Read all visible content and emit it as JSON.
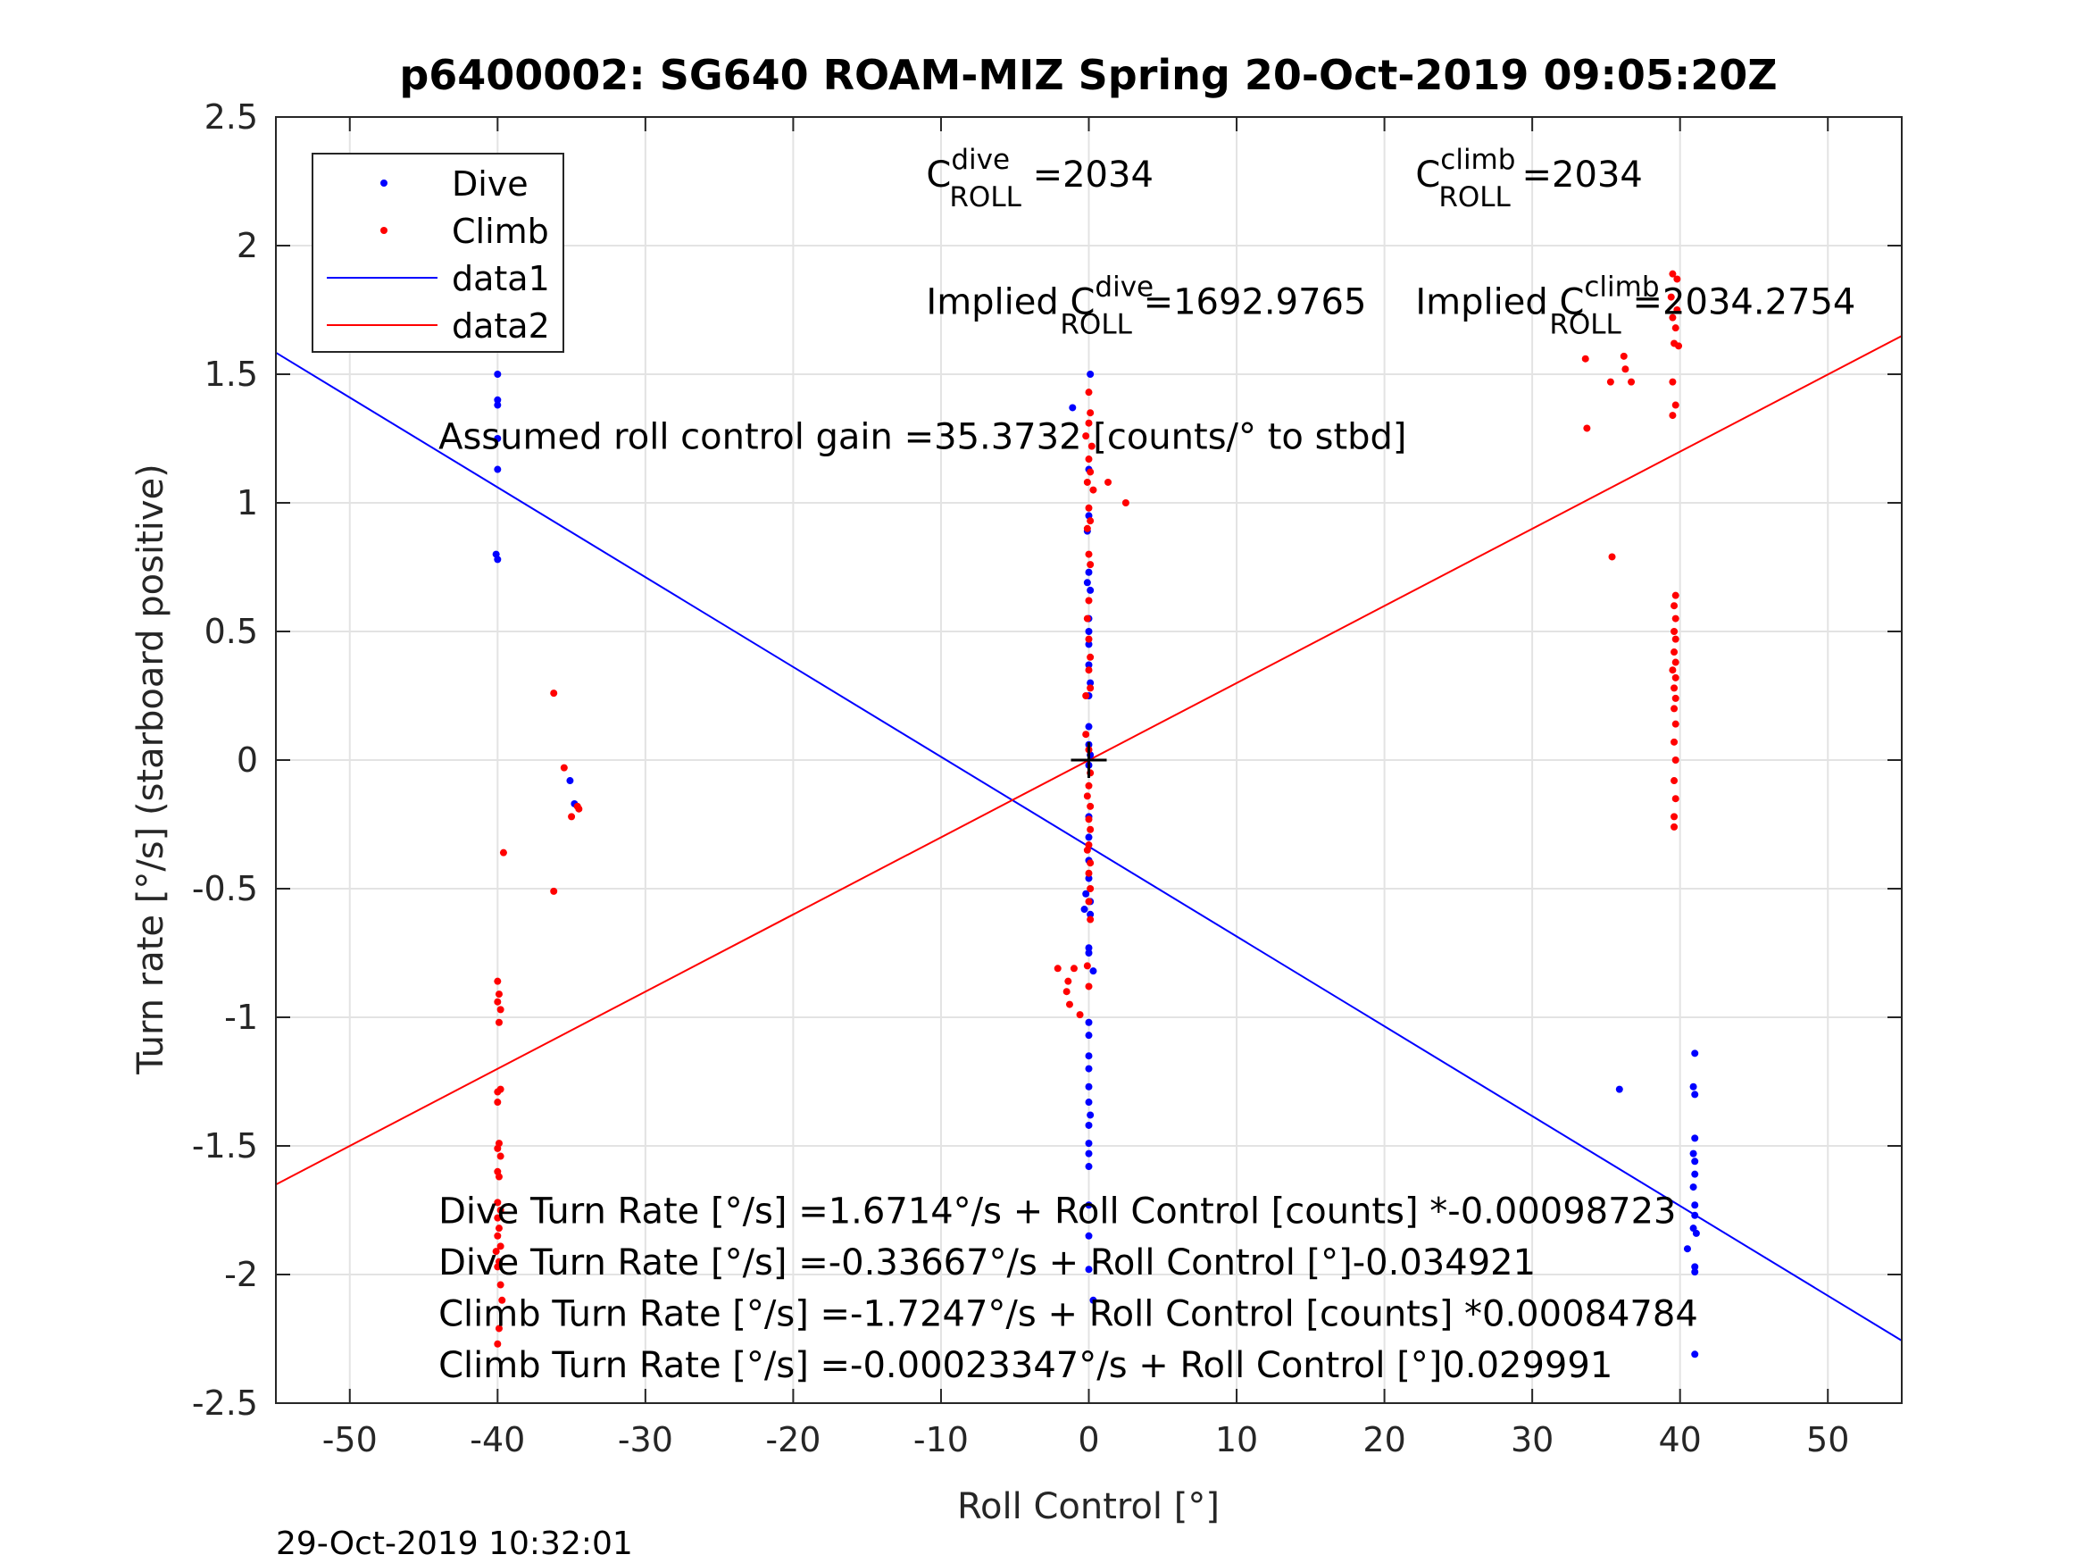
{
  "chart_data": {
    "type": "scatter",
    "title": "p6400002: SG640 ROAM-MIZ Spring 20-Oct-2019 09:05:20Z",
    "xlabel": "Roll Control [°]",
    "ylabel": "Turn rate [°/s] (starboard positive)",
    "xlim": [
      -55,
      55
    ],
    "ylim": [
      -2.5,
      2.5
    ],
    "xticks": [
      -50,
      -40,
      -30,
      -20,
      -10,
      0,
      10,
      20,
      30,
      40,
      50
    ],
    "yticks": [
      -2.5,
      -2,
      -1.5,
      -1,
      -0.5,
      0,
      0.5,
      1,
      1.5,
      2,
      2.5
    ],
    "grid": true,
    "legend_position": "top-left",
    "legend": [
      "Dive",
      "Climb",
      "data1",
      "data2"
    ],
    "colors": {
      "dive": "#0000ff",
      "climb": "#ff0000",
      "marker": "#000000"
    },
    "series": [
      {
        "name": "Dive",
        "kind": "points",
        "color": "#0000ff",
        "points": [
          [
            -40,
            1.78
          ],
          [
            -40,
            1.75
          ],
          [
            -40,
            1.5
          ],
          [
            -40,
            1.4
          ],
          [
            -40,
            1.38
          ],
          [
            -40,
            1.25
          ],
          [
            -40,
            1.13
          ],
          [
            -40.1,
            0.8
          ],
          [
            -40,
            0.78
          ],
          [
            -35.1,
            -0.08
          ],
          [
            -34.8,
            -0.17
          ],
          [
            -1.1,
            1.37
          ],
          [
            0.1,
            1.5
          ],
          [
            0,
            1.13
          ],
          [
            0,
            0.95
          ],
          [
            -0.1,
            0.89
          ],
          [
            0,
            0.73
          ],
          [
            -0.1,
            0.69
          ],
          [
            0.1,
            0.66
          ],
          [
            0,
            0.55
          ],
          [
            0,
            0.5
          ],
          [
            0,
            0.45
          ],
          [
            0,
            0.37
          ],
          [
            0.1,
            0.3
          ],
          [
            0,
            0.25
          ],
          [
            0,
            0.13
          ],
          [
            0,
            0.06
          ],
          [
            0.1,
            0.02
          ],
          [
            0,
            -0.02
          ],
          [
            0,
            -0.22
          ],
          [
            0,
            -0.3
          ],
          [
            0,
            -0.39
          ],
          [
            0,
            -0.46
          ],
          [
            -0.2,
            -0.52
          ],
          [
            0.1,
            -0.55
          ],
          [
            -0.3,
            -0.58
          ],
          [
            0.1,
            -0.6
          ],
          [
            0,
            -0.73
          ],
          [
            0,
            -0.75
          ],
          [
            0.3,
            -0.82
          ],
          [
            0,
            -1.02
          ],
          [
            0,
            -1.07
          ],
          [
            0,
            -1.15
          ],
          [
            0,
            -1.2
          ],
          [
            0,
            -1.27
          ],
          [
            0,
            -1.33
          ],
          [
            0.1,
            -1.38
          ],
          [
            0,
            -1.42
          ],
          [
            0,
            -1.49
          ],
          [
            0,
            -1.53
          ],
          [
            0,
            -1.58
          ],
          [
            0,
            -1.73
          ],
          [
            0,
            -1.85
          ],
          [
            0,
            -1.98
          ],
          [
            0.3,
            -2.1
          ],
          [
            35.9,
            -1.28
          ],
          [
            41,
            -1.14
          ],
          [
            40.9,
            -1.27
          ],
          [
            41,
            -1.3
          ],
          [
            41,
            -1.47
          ],
          [
            40.9,
            -1.53
          ],
          [
            41,
            -1.56
          ],
          [
            41,
            -1.61
          ],
          [
            40.9,
            -1.66
          ],
          [
            41,
            -1.73
          ],
          [
            41,
            -1.77
          ],
          [
            40.9,
            -1.82
          ],
          [
            41.1,
            -1.84
          ],
          [
            40.5,
            -1.9
          ],
          [
            41,
            -1.97
          ],
          [
            41,
            -1.99
          ],
          [
            41,
            -2.31
          ]
        ]
      },
      {
        "name": "Climb",
        "kind": "points",
        "color": "#ff0000",
        "points": [
          [
            -39.6,
            -0.36
          ],
          [
            -36.2,
            0.26
          ],
          [
            -36.2,
            -0.51
          ],
          [
            -35.5,
            -0.03
          ],
          [
            -35,
            -0.22
          ],
          [
            -34.6,
            -0.18
          ],
          [
            -34.5,
            -0.19
          ],
          [
            -40,
            -0.86
          ],
          [
            -39.9,
            -0.91
          ],
          [
            -40,
            -0.94
          ],
          [
            -39.8,
            -0.97
          ],
          [
            -39.9,
            -1.02
          ],
          [
            -40,
            -1.29
          ],
          [
            -39.8,
            -1.28
          ],
          [
            -40,
            -1.33
          ],
          [
            -39.9,
            -1.49
          ],
          [
            -40,
            -1.51
          ],
          [
            -39.8,
            -1.54
          ],
          [
            -40,
            -1.6
          ],
          [
            -39.9,
            -1.62
          ],
          [
            -40,
            -1.72
          ],
          [
            -39.8,
            -1.75
          ],
          [
            -40,
            -1.78
          ],
          [
            -39.9,
            -1.82
          ],
          [
            -40,
            -1.85
          ],
          [
            -39.8,
            -1.89
          ],
          [
            -40.1,
            -1.91
          ],
          [
            -39.9,
            -1.95
          ],
          [
            -40,
            -1.97
          ],
          [
            -39.7,
            -2.1
          ],
          [
            -39.9,
            -2.21
          ],
          [
            -39.8,
            -2.04
          ],
          [
            -40,
            -2.27
          ],
          [
            0,
            1.43
          ],
          [
            0.1,
            1.35
          ],
          [
            0,
            1.31
          ],
          [
            -0.2,
            1.26
          ],
          [
            0.2,
            1.22
          ],
          [
            0,
            1.17
          ],
          [
            0.1,
            1.12
          ],
          [
            -0.1,
            1.08
          ],
          [
            1.3,
            1.08
          ],
          [
            0.3,
            1.05
          ],
          [
            2.5,
            1
          ],
          [
            0,
            0.98
          ],
          [
            0.1,
            0.93
          ],
          [
            -0.1,
            0.9
          ],
          [
            0,
            0.8
          ],
          [
            0.1,
            0.76
          ],
          [
            0,
            0.62
          ],
          [
            -0.1,
            0.55
          ],
          [
            0,
            0.47
          ],
          [
            0.1,
            0.4
          ],
          [
            0,
            0.35
          ],
          [
            0.1,
            0.28
          ],
          [
            -0.2,
            0.25
          ],
          [
            -0.2,
            0.1
          ],
          [
            0,
            0.04
          ],
          [
            0.1,
            -0.05
          ],
          [
            0,
            -0.1
          ],
          [
            -0.1,
            -0.14
          ],
          [
            0.1,
            -0.18
          ],
          [
            0,
            -0.23
          ],
          [
            0.1,
            -0.27
          ],
          [
            0,
            -0.33
          ],
          [
            -0.1,
            -0.35
          ],
          [
            0.1,
            -0.4
          ],
          [
            0,
            -0.44
          ],
          [
            0.1,
            -0.5
          ],
          [
            0,
            -0.55
          ],
          [
            0.1,
            -0.62
          ],
          [
            -2.1,
            -0.81
          ],
          [
            -1,
            -0.81
          ],
          [
            -0.1,
            -0.8
          ],
          [
            -1.4,
            -0.86
          ],
          [
            -1.5,
            -0.9
          ],
          [
            -1.3,
            -0.95
          ],
          [
            -0.6,
            -0.99
          ],
          [
            0,
            -0.88
          ],
          [
            39.5,
            1.89
          ],
          [
            39.8,
            1.87
          ],
          [
            39.4,
            1.8
          ],
          [
            39.8,
            1.75
          ],
          [
            39.5,
            1.72
          ],
          [
            39.7,
            1.68
          ],
          [
            39.6,
            1.62
          ],
          [
            39.9,
            1.61
          ],
          [
            33.6,
            1.56
          ],
          [
            36.2,
            1.57
          ],
          [
            36.3,
            1.52
          ],
          [
            35.3,
            1.47
          ],
          [
            36.7,
            1.47
          ],
          [
            39.5,
            1.47
          ],
          [
            39.7,
            1.38
          ],
          [
            39.5,
            1.34
          ],
          [
            33.7,
            1.29
          ],
          [
            35.4,
            0.79
          ],
          [
            39.7,
            0.64
          ],
          [
            39.6,
            0.6
          ],
          [
            39.7,
            0.55
          ],
          [
            39.6,
            0.5
          ],
          [
            39.7,
            0.47
          ],
          [
            39.6,
            0.42
          ],
          [
            39.7,
            0.38
          ],
          [
            39.5,
            0.35
          ],
          [
            39.7,
            0.32
          ],
          [
            39.6,
            0.28
          ],
          [
            39.7,
            0.24
          ],
          [
            39.6,
            0.2
          ],
          [
            39.7,
            0.14
          ],
          [
            39.6,
            0.07
          ],
          [
            39.7,
            0
          ],
          [
            39.6,
            -0.08
          ],
          [
            39.7,
            -0.15
          ],
          [
            39.6,
            -0.22
          ],
          [
            39.6,
            -0.26
          ]
        ]
      },
      {
        "name": "data1",
        "kind": "line",
        "color": "#0000ff",
        "points": [
          [
            -55,
            1.584
          ],
          [
            55,
            -2.257
          ]
        ]
      },
      {
        "name": "data2",
        "kind": "line",
        "color": "#ff0000",
        "points": [
          [
            -55,
            -1.65
          ],
          [
            55,
            1.649
          ]
        ]
      }
    ],
    "origin_marker": [
      0,
      0
    ],
    "annotations": [
      {
        "key": "c_dive",
        "type": "cterm",
        "x": -11,
        "y": 2.23,
        "base": "C",
        "sup": "dive",
        "sub": "ROLL",
        "text": " =2034"
      },
      {
        "key": "c_climb",
        "type": "cterm",
        "x": 22.1,
        "y": 2.23,
        "base": "C",
        "sup": "climb",
        "sub": "ROLL",
        "text": " =2034"
      },
      {
        "key": "implied_dive",
        "type": "cterm",
        "x": -11,
        "y": 1.735,
        "prefix": "Implied ",
        "base": "C",
        "sup": "dive",
        "sub": "ROLL",
        "text": " =1692.9765"
      },
      {
        "key": "implied_climb",
        "type": "cterm",
        "x": 22.1,
        "y": 1.735,
        "prefix": "Implied ",
        "base": "C",
        "sup": "climb",
        "sub": "ROLL",
        "text": " =2034.2754"
      },
      {
        "key": "gain",
        "type": "text",
        "x": -44,
        "y": 1.21,
        "text": "Assumed roll control gain =35.3732 [counts/° to stbd]"
      },
      {
        "key": "dive_counts",
        "type": "text",
        "x": -44,
        "y": -1.8,
        "text": "Dive Turn Rate [°/s] =1.6714°/s + Roll Control [counts] *-0.00098723"
      },
      {
        "key": "dive_deg",
        "type": "text",
        "x": -44,
        "y": -2.0,
        "text": "Dive Turn Rate [°/s] =-0.33667°/s + Roll Control [°]-0.034921"
      },
      {
        "key": "climb_counts",
        "type": "text",
        "x": -44,
        "y": -2.2,
        "text": "Climb Turn Rate [°/s] =-1.7247°/s + Roll Control [counts] *0.00084784"
      },
      {
        "key": "climb_deg",
        "type": "text",
        "x": -44,
        "y": -2.4,
        "text": "Climb Turn Rate [°/s] =-0.00023347°/s + Roll Control [°]0.029991"
      }
    ]
  },
  "footer": {
    "timestamp": "29-Oct-2019 10:32:01"
  }
}
